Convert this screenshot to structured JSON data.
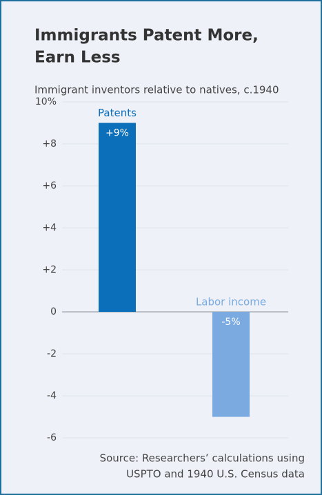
{
  "chart_data": {
    "type": "bar",
    "title": [
      "Immigrants Patent More,",
      "Earn Less"
    ],
    "subtitle": "Immigrant inventors relative to natives, c.1940",
    "categories": [
      "Patents",
      "Labor income"
    ],
    "values": [
      9,
      -5
    ],
    "value_labels": [
      "+9%",
      "-5%"
    ],
    "colors": [
      "#0b6fba",
      "#7aaadf"
    ],
    "ylim": [
      -6,
      10
    ],
    "yticks": [
      {
        "value": 10,
        "label": "10%"
      },
      {
        "value": 8,
        "label": "+8"
      },
      {
        "value": 6,
        "label": "+6"
      },
      {
        "value": 4,
        "label": "+4"
      },
      {
        "value": 2,
        "label": "+2"
      },
      0,
      -2,
      -4,
      -6
    ],
    "grid": true,
    "source": [
      "Source: Researchers’ calculations using",
      "USPTO and 1940 U.S. Census data"
    ]
  }
}
